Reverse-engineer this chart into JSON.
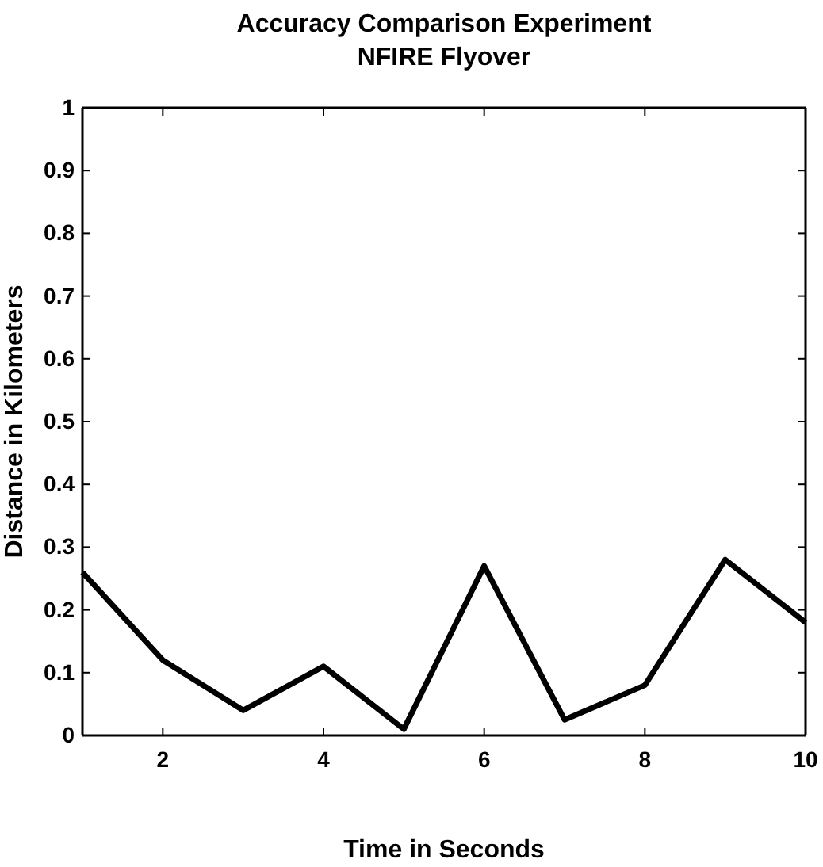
{
  "chart_data": {
    "type": "line",
    "title": "Accuracy Comparison Experiment",
    "subtitle": "NFIRE Flyover",
    "xlabel": "Time in Seconds",
    "ylabel": "Distance in Kilometers",
    "x": [
      1,
      2,
      3,
      4,
      5,
      6,
      7,
      8,
      9,
      10
    ],
    "series": [
      {
        "color": "#000000",
        "values": [
          0.26,
          0.12,
          0.04,
          0.11,
          0.01,
          0.27,
          0.025,
          0.08,
          0.28,
          0.18
        ]
      }
    ],
    "xlim": [
      1,
      10
    ],
    "xticks": [
      2,
      4,
      6,
      8,
      10
    ],
    "ylim": [
      0,
      1
    ],
    "yticks": [
      0,
      0.1,
      0.2,
      0.3,
      0.4,
      0.5,
      0.6,
      0.7,
      0.8,
      0.9,
      1
    ],
    "grid": false,
    "marker": "none",
    "line_style": "solid"
  }
}
